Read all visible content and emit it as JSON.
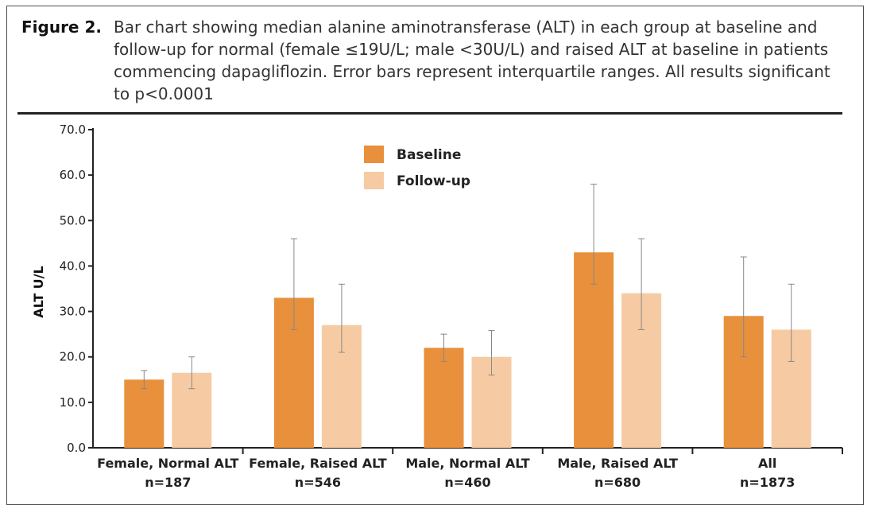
{
  "figure": {
    "label": "Figure 2.",
    "caption": "Bar chart showing median alanine aminotransferase (ALT) in each group at baseline and follow-up for normal (female ≤19U/L; male <30U/L) and raised ALT at baseline in patients commencing dapagliflozin. Error bars represent interquartile ranges. All results significant to p<0.0001"
  },
  "chart_data": {
    "type": "bar",
    "ylabel": "ALT U/L",
    "ylim": [
      0,
      70
    ],
    "yticks": [
      "0.0",
      "10.0",
      "20.0",
      "30.0",
      "40.0",
      "50.0",
      "60.0",
      "70.0"
    ],
    "categories": [
      {
        "name": "Female, Normal ALT",
        "n": "n=187"
      },
      {
        "name": "Female, Raised ALT",
        "n": "n=546"
      },
      {
        "name": "Male, Normal ALT",
        "n": "n=460"
      },
      {
        "name": "Male, Raised ALT",
        "n": "n=680"
      },
      {
        "name": "All",
        "n": "n=1873"
      }
    ],
    "series": [
      {
        "name": "Baseline",
        "color": "#e8903b",
        "values": [
          15,
          33,
          22,
          43,
          29
        ],
        "iqr_low": [
          13,
          26,
          19,
          36,
          20
        ],
        "iqr_high": [
          17,
          46,
          25,
          58,
          42
        ]
      },
      {
        "name": "Follow-up",
        "color": "#f6cba3",
        "values": [
          16.5,
          27,
          20,
          34,
          26
        ],
        "iqr_low": [
          13,
          21,
          16,
          26,
          19
        ],
        "iqr_high": [
          20,
          36,
          25.8,
          46,
          36
        ]
      }
    ],
    "legend_position": "top-center"
  }
}
